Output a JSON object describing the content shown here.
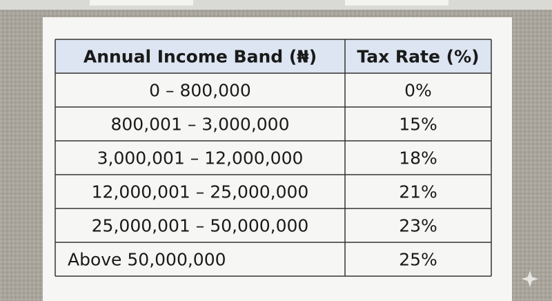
{
  "table": {
    "header": [
      "Annual Income Band (₦)",
      "Tax Rate (%)"
    ],
    "rows": [
      [
        "0 – 800,000",
        "0%"
      ],
      [
        "800,001 – 3,000,000",
        "15%"
      ],
      [
        "3,000,001 – 12,000,000",
        "18%"
      ],
      [
        "12,000,001 – 25,000,000",
        "21%"
      ],
      [
        "25,000,001 – 50,000,000",
        "23%"
      ],
      [
        "Above 50,000,000",
        "25%"
      ]
    ]
  }
}
